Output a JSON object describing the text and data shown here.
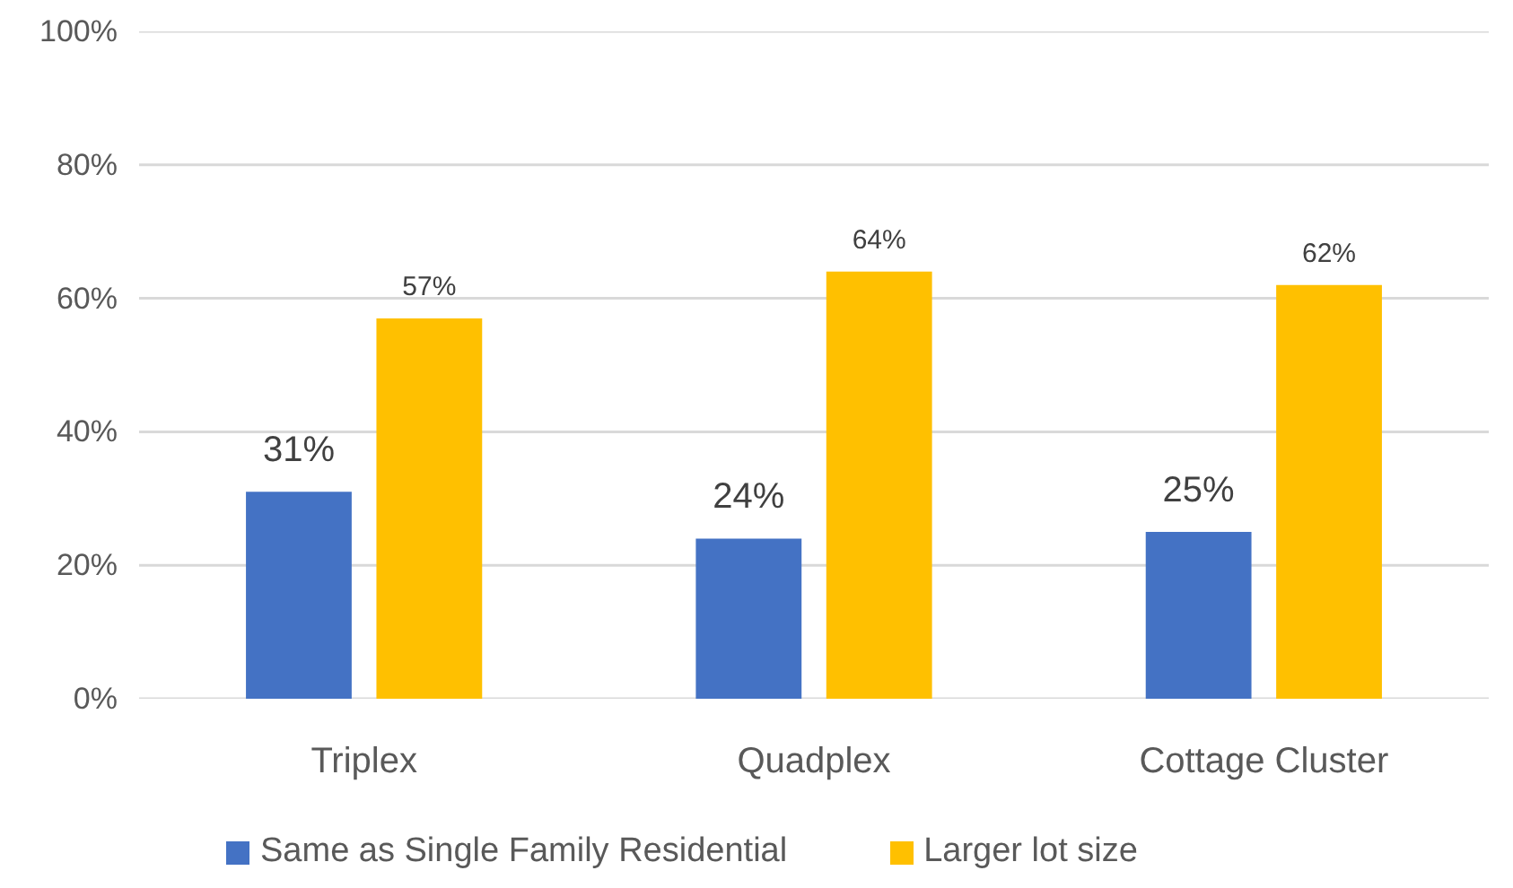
{
  "chart_data": {
    "type": "bar",
    "categories": [
      "Triplex",
      "Quadplex",
      "Cottage Cluster"
    ],
    "series": [
      {
        "name": "Same as Single Family Residential",
        "color": "#4472c4",
        "values": [
          31,
          24,
          25
        ],
        "value_labels": [
          "31%",
          "24%",
          "25%"
        ]
      },
      {
        "name": "Larger lot size",
        "color": "#ffc000",
        "values": [
          57,
          64,
          62
        ],
        "value_labels": [
          "57%",
          "64%",
          "62%"
        ]
      }
    ],
    "ylim": [
      0,
      100
    ],
    "yticks": [
      {
        "value": 0,
        "label": "0%"
      },
      {
        "value": 20,
        "label": "20%"
      },
      {
        "value": 40,
        "label": "40%"
      },
      {
        "value": 60,
        "label": "60%"
      },
      {
        "value": 80,
        "label": "80%"
      },
      {
        "value": 100,
        "label": "100%"
      }
    ],
    "grid": "y",
    "legend": "bottom"
  }
}
